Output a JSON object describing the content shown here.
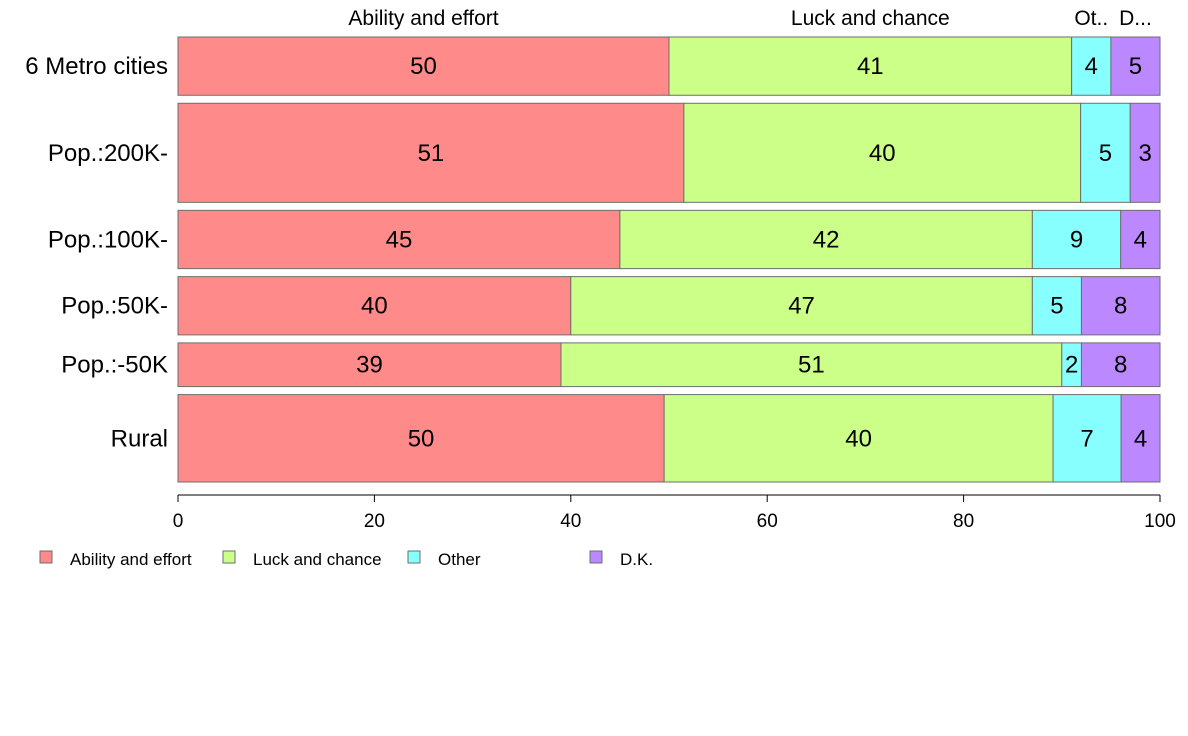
{
  "chart_data": {
    "type": "bar",
    "orientation": "horizontal",
    "stacked": true,
    "categories": [
      "6 Metro cities",
      "Pop.:200K-",
      "Pop.:100K-",
      "Pop.:50K-",
      "Pop.:-50K",
      "Rural"
    ],
    "bar_weights": [
      1.0,
      1.7,
      1.0,
      1.0,
      0.75,
      1.5
    ],
    "series": [
      {
        "name": "Ability and effort",
        "values": [
          50,
          51,
          45,
          40,
          39,
          50
        ],
        "color": "#ff8a8a"
      },
      {
        "name": "Luck and chance",
        "values": [
          41,
          40,
          42,
          47,
          51,
          40
        ],
        "color": "#ccff88"
      },
      {
        "name": "Other",
        "values": [
          4,
          5,
          9,
          5,
          2,
          7
        ],
        "color": "#88ffff"
      },
      {
        "name": "D.K.",
        "values": [
          5,
          3,
          4,
          8,
          8,
          4
        ],
        "color": "#bb88ff"
      }
    ],
    "top_labels": [
      "Ability and effort",
      "Luck and chance",
      "Ot..",
      "D..."
    ],
    "xlim": [
      0,
      100
    ],
    "xticks": [
      0,
      20,
      40,
      60,
      80,
      100
    ],
    "grid": false,
    "legend_position": "bottom-left"
  }
}
